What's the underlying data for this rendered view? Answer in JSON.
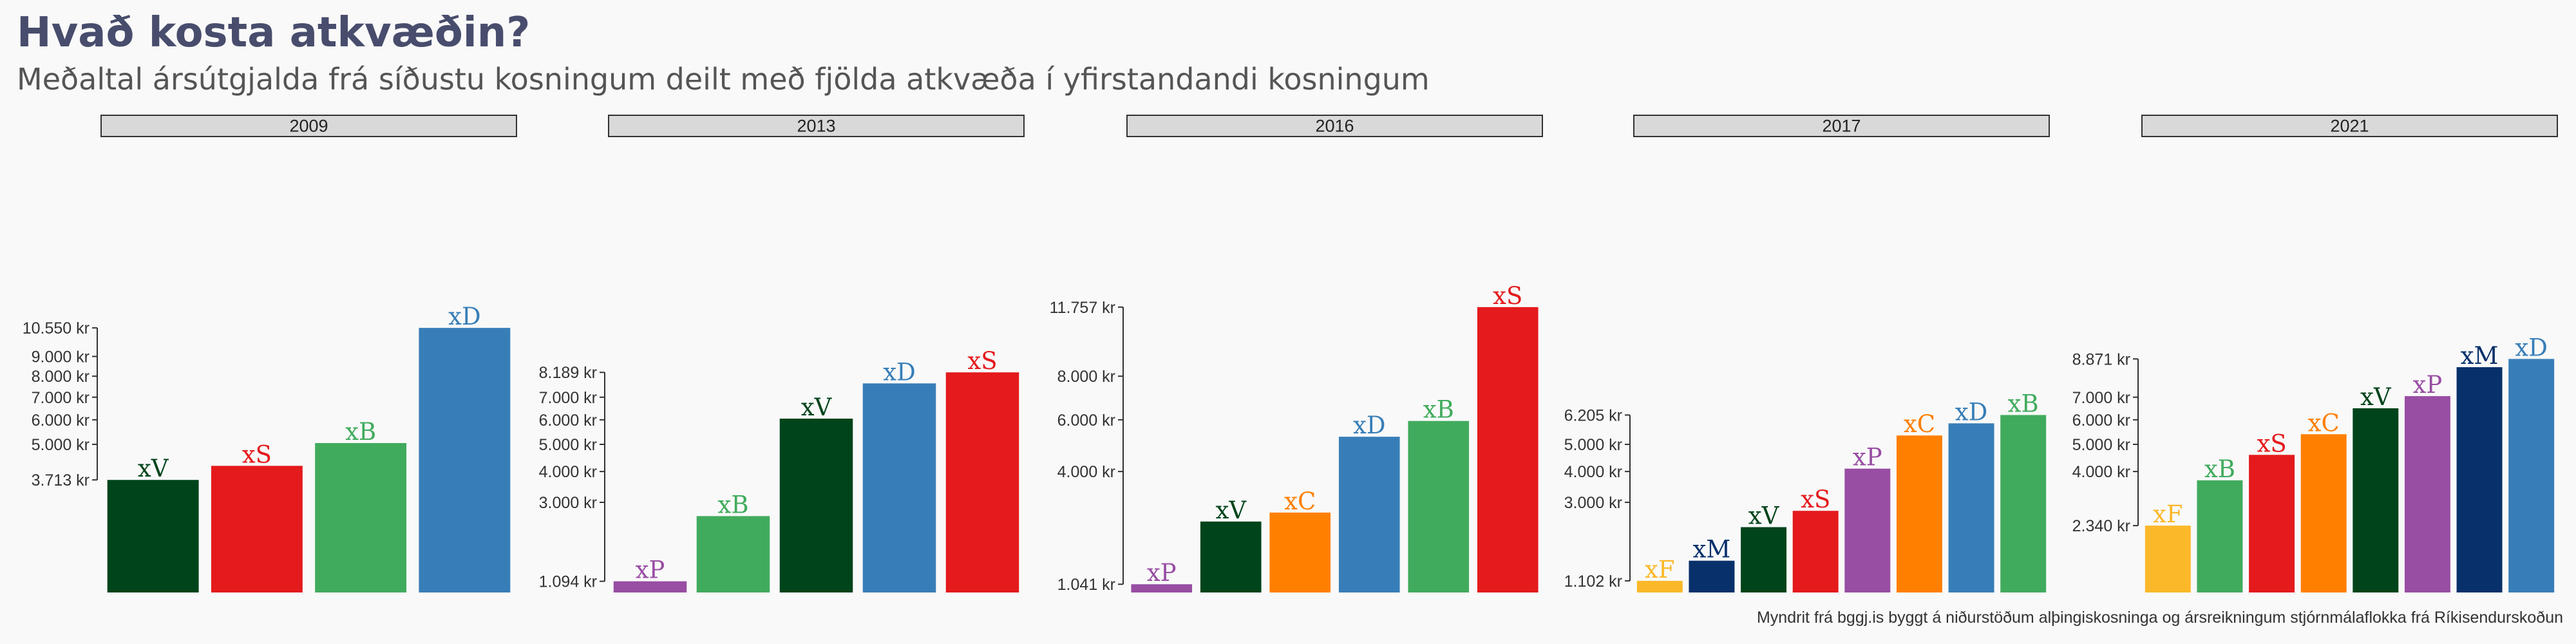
{
  "title": "Hvað kosta atkvæðin?",
  "subtitle": "Meðaltal ársútgjalda frá síðustu kosningum deilt með fjölda atkvæða í yfirstandandi kosningum",
  "caption": "Myndrit frá bggj.is byggt á niðurstöðum alþingiskosninga og ársreikningum stjórnmálaflokka frá Ríkisendurskoðun",
  "party_colors": {
    "xV": "#00441b",
    "xS": "#e41a1c",
    "xB": "#41ab5d",
    "xD": "#377eb8",
    "xP": "#984ea3",
    "xC": "#ff7f00",
    "xF": "#fbb829",
    "xM": "#08306b"
  },
  "chart_data": [
    {
      "type": "bar",
      "panel": "2009",
      "categories": [
        "xV",
        "xS",
        "xB",
        "xD"
      ],
      "values": [
        3713,
        4200,
        5050,
        10550
      ],
      "yticks": [
        3713,
        5000,
        6000,
        7000,
        8000,
        9000,
        10550
      ],
      "ytick_labels": [
        "3.713 kr",
        "5.000 kr",
        "6.000 kr",
        "7.000 kr",
        "8.000 kr",
        "9.000 kr",
        "10.550 kr"
      ],
      "yscale": "sqrt"
    },
    {
      "type": "bar",
      "panel": "2013",
      "categories": [
        "xP",
        "xB",
        "xV",
        "xD",
        "xS"
      ],
      "values": [
        1094,
        2600,
        6050,
        7650,
        8189
      ],
      "yticks": [
        1094,
        3000,
        4000,
        5000,
        6000,
        7000,
        8189
      ],
      "ytick_labels": [
        "1.094 kr",
        "3.000 kr",
        "4.000 kr",
        "5.000 kr",
        "6.000 kr",
        "7.000 kr",
        "8.189 kr"
      ],
      "yscale": "sqrt"
    },
    {
      "type": "bar",
      "panel": "2016",
      "categories": [
        "xP",
        "xV",
        "xC",
        "xD",
        "xB",
        "xS"
      ],
      "values": [
        1041,
        2450,
        2700,
        5300,
        5950,
        11757
      ],
      "yticks": [
        1041,
        4000,
        6000,
        8000,
        11757
      ],
      "ytick_labels": [
        "1.041 kr",
        "4.000 kr",
        "6.000 kr",
        "8.000 kr",
        "11.757 kr"
      ],
      "yscale": "sqrt"
    },
    {
      "type": "bar",
      "panel": "2017",
      "categories": [
        "xF",
        "xM",
        "xV",
        "xS",
        "xP",
        "xC",
        "xD",
        "xB"
      ],
      "values": [
        1102,
        1500,
        2300,
        2750,
        4100,
        5350,
        5850,
        6205
      ],
      "yticks": [
        1102,
        3000,
        4000,
        5000,
        6205
      ],
      "ytick_labels": [
        "1.102 kr",
        "3.000 kr",
        "4.000 kr",
        "5.000 kr",
        "6.205 kr"
      ],
      "yscale": "sqrt"
    },
    {
      "type": "bar",
      "panel": "2021",
      "categories": [
        "xF",
        "xB",
        "xS",
        "xC",
        "xV",
        "xP",
        "xM",
        "xD"
      ],
      "values": [
        2340,
        3700,
        4600,
        5400,
        6500,
        7050,
        8450,
        8871
      ],
      "yticks": [
        2340,
        4000,
        5000,
        6000,
        7000,
        8871
      ],
      "ytick_labels": [
        "2.340 kr",
        "4.000 kr",
        "5.000 kr",
        "6.000 kr",
        "7.000 kr",
        "8.871 kr"
      ],
      "yscale": "sqrt"
    }
  ]
}
